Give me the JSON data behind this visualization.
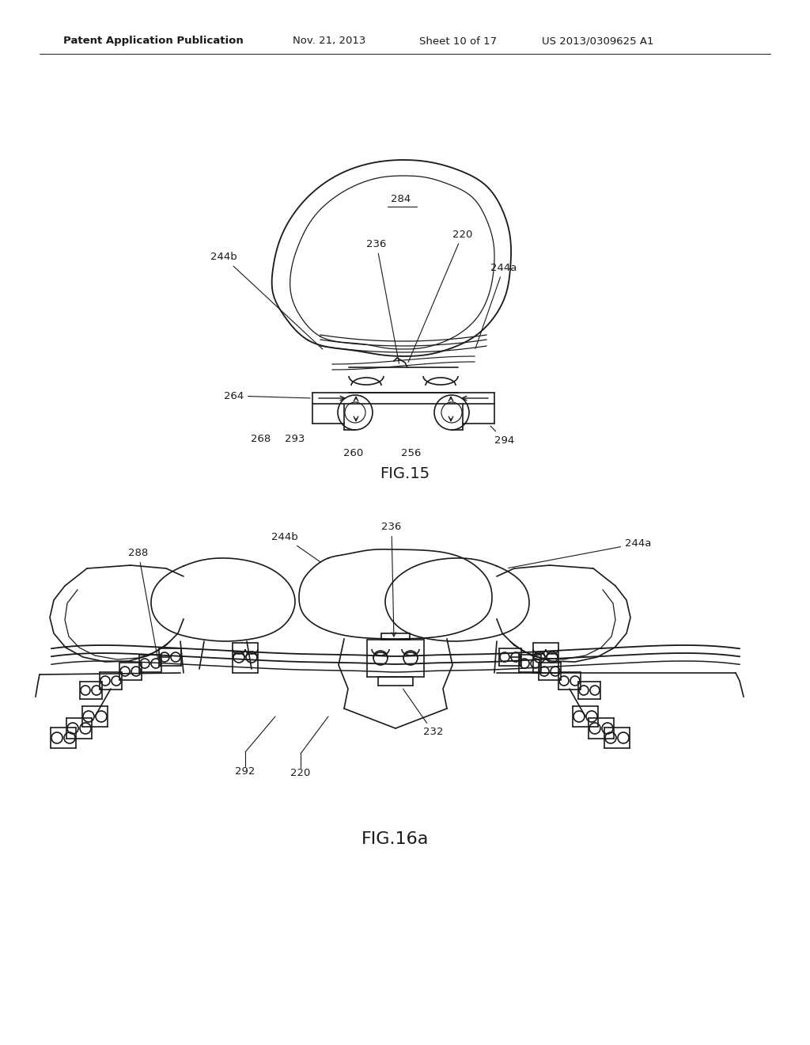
{
  "bg_color": "#ffffff",
  "header_text": "Patent Application Publication",
  "header_date": "Nov. 21, 2013",
  "header_sheet": "Sheet 10 of 17",
  "header_patent": "US 2013/0309625 A1",
  "fig15_label": "FIG.15",
  "fig16_label": "FIG.16a",
  "line_color": "#1a1a1a",
  "line_width": 1.2,
  "label_fontsize": 9.5,
  "header_fontsize": 9,
  "fig_label_fontsize": 14
}
